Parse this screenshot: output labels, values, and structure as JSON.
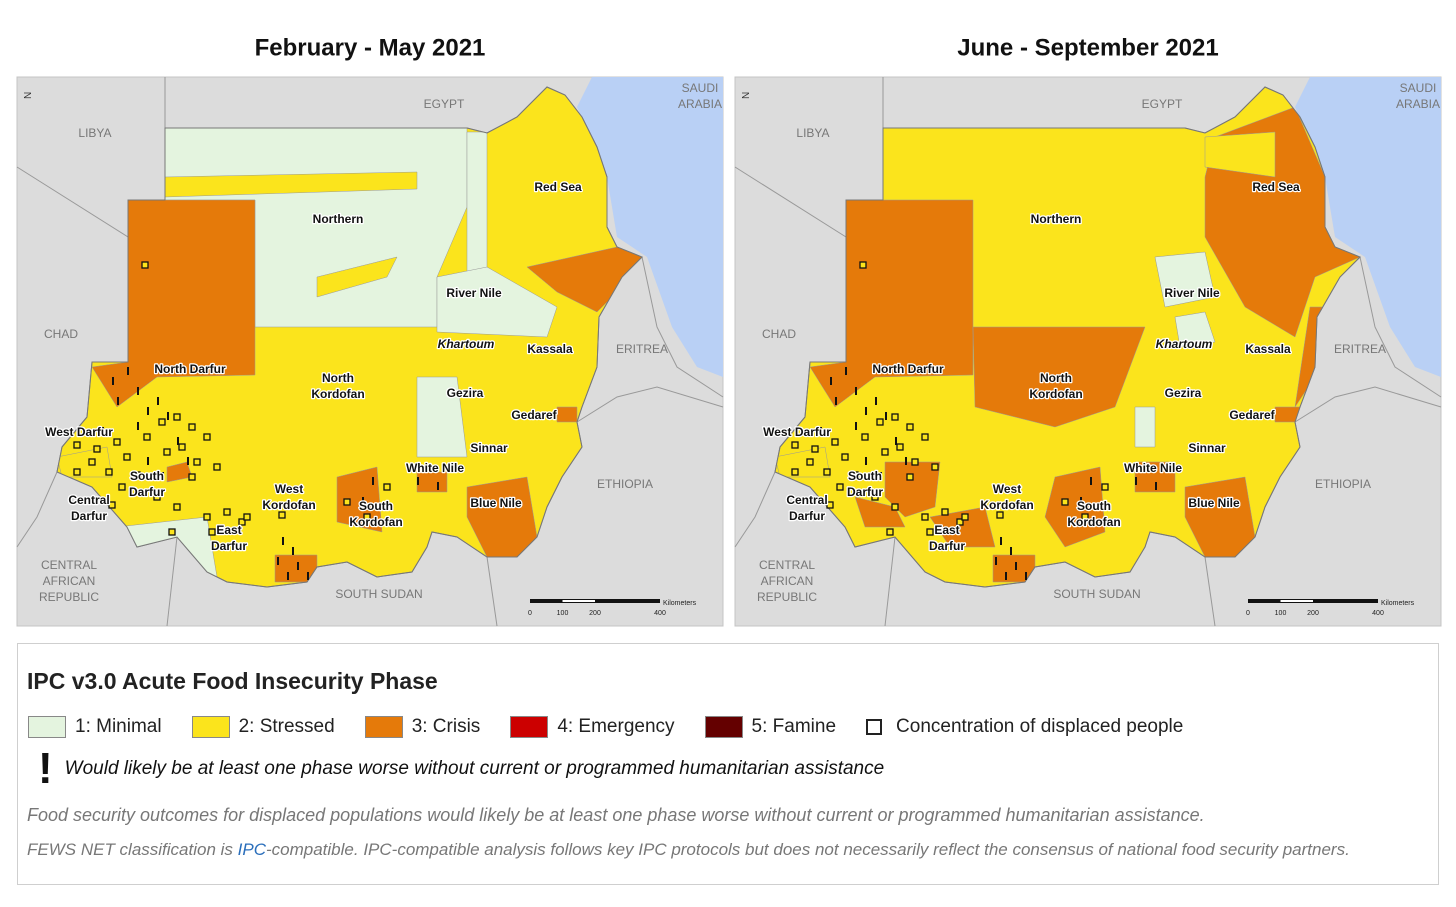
{
  "maps": [
    {
      "title": "February - May 2021"
    },
    {
      "title": "June - September 2021"
    }
  ],
  "north": "N",
  "countries": [
    [
      "LIBYA"
    ],
    [
      "EGYPT"
    ],
    [
      "SAUDI",
      "ARABIA"
    ],
    [
      "CHAD"
    ],
    [
      "ERITREA"
    ],
    [
      "ETHIOPIA"
    ],
    [
      "CENTRAL",
      "AFRICAN",
      "REPUBLIC"
    ],
    [
      "SOUTH SUDAN"
    ]
  ],
  "regions": [
    [
      "Northern"
    ],
    [
      "Red Sea"
    ],
    [
      "River Nile"
    ],
    [
      "Khartoum"
    ],
    [
      "Kassala"
    ],
    [
      "North Darfur"
    ],
    [
      "North",
      "Kordofan"
    ],
    [
      "Gezira"
    ],
    [
      "Gedaref"
    ],
    [
      "West Darfur"
    ],
    [
      "Sinnar"
    ],
    [
      "White Nile"
    ],
    [
      "South",
      "Darfur"
    ],
    [
      "Central",
      "Darfur"
    ],
    [
      "West",
      "Kordofan"
    ],
    [
      "South",
      "Kordofan"
    ],
    [
      "Blue Nile"
    ],
    [
      "East",
      "Darfur"
    ]
  ],
  "scale": {
    "label": "Kilometers",
    "ticks": [
      0,
      100,
      200,
      400
    ]
  },
  "legend": {
    "title": "IPC v3.0 Acute Food Insecurity Phase",
    "items": [
      {
        "label": "1: Minimal",
        "color": "#e4f4df"
      },
      {
        "label": "2: Stressed",
        "color": "#fbe41c"
      },
      {
        "label": "3: Crisis",
        "color": "#e57a0a"
      },
      {
        "label": "4: Emergency",
        "color": "#cc0000"
      },
      {
        "label": "5: Famine",
        "color": "#640000"
      },
      {
        "label": "Concentration of displaced people"
      }
    ],
    "note_symbol": "!",
    "note": "Would likely be at least one phase worse without current or programmed humanitarian assistance"
  },
  "footnote": "Food security outcomes for displaced populations would likely be at least one phase worse without current or programmed humanitarian assistance.",
  "classification": {
    "before": "FEWS NET classification is ",
    "link": "IPC",
    "after": "-compatible. IPC-compatible analysis follows key IPC protocols but does not necessarily reflect the consensus of national food security partners."
  }
}
